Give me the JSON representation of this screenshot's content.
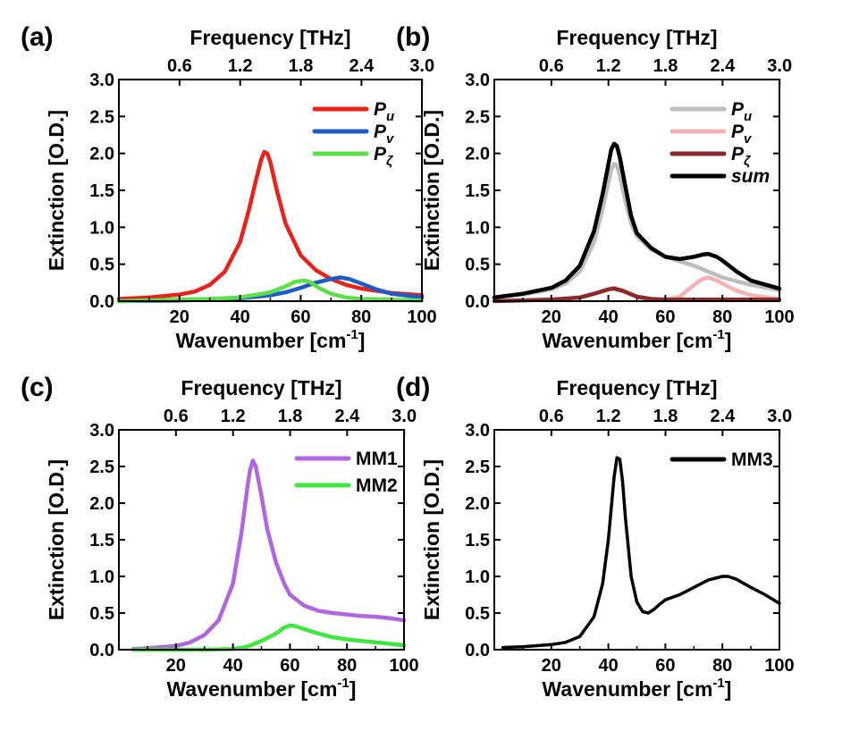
{
  "chart_data": [
    {
      "type": "line",
      "panel_label": "(a)",
      "xlabel": "Wavenumber [cm",
      "xlabel_sup": "-1",
      "xlabel_tail": "]",
      "ylabel": "Extinction [O.D.]",
      "top_axis_label": "Frequency [THz]",
      "xlim": [
        0,
        100
      ],
      "ylim": [
        0,
        3.0
      ],
      "x_ticks": [
        20,
        40,
        60,
        80,
        100
      ],
      "x_tick_labels": [
        "20",
        "40",
        "60",
        "80",
        "100"
      ],
      "y_ticks": [
        0,
        0.5,
        1,
        1.5,
        2,
        2.5,
        3
      ],
      "y_tick_labels": [
        "0.0",
        "0.5",
        "1.0",
        "1.5",
        "2.0",
        "2.5",
        "3.0"
      ],
      "top_ticks": [
        0.6,
        1.2,
        1.8,
        2.4,
        3.0
      ],
      "top_tick_labels": [
        "0.6",
        "1.2",
        "1.8",
        "2.4",
        "3.0"
      ],
      "legend_position": "top-right",
      "series": [
        {
          "name": "P",
          "sub": "u",
          "color": "#e8231c",
          "x": [
            0,
            10,
            20,
            25,
            30,
            35,
            40,
            43,
            45,
            47,
            48,
            49,
            50,
            52,
            55,
            60,
            65,
            70,
            75,
            80,
            90,
            100
          ],
          "y": [
            0.03,
            0.05,
            0.09,
            0.13,
            0.22,
            0.4,
            0.8,
            1.25,
            1.6,
            1.92,
            2.02,
            2.0,
            1.88,
            1.52,
            1.05,
            0.62,
            0.42,
            0.3,
            0.22,
            0.17,
            0.11,
            0.08
          ]
        },
        {
          "name": "P",
          "sub": "v",
          "color": "#1f5bc4",
          "x": [
            0,
            20,
            40,
            50,
            55,
            60,
            65,
            70,
            73,
            76,
            80,
            85,
            90,
            100
          ],
          "y": [
            0.0,
            0.01,
            0.04,
            0.08,
            0.12,
            0.18,
            0.25,
            0.3,
            0.32,
            0.3,
            0.24,
            0.16,
            0.1,
            0.05
          ]
        },
        {
          "name": "P",
          "sub": "ζ",
          "color": "#5ce048",
          "x": [
            0,
            20,
            30,
            40,
            50,
            55,
            58,
            61,
            63,
            66,
            70,
            75,
            80,
            90,
            100
          ],
          "y": [
            0.0,
            0.02,
            0.03,
            0.05,
            0.12,
            0.2,
            0.26,
            0.28,
            0.26,
            0.18,
            0.1,
            0.05,
            0.03,
            0.02,
            0.01
          ]
        }
      ]
    },
    {
      "type": "line",
      "panel_label": "(b)",
      "xlabel": "Wavenumber [cm",
      "xlabel_sup": "-1",
      "xlabel_tail": "]",
      "ylabel": "Extinction [O.D.]",
      "top_axis_label": "Frequency [THz]",
      "xlim": [
        0,
        100
      ],
      "ylim": [
        0,
        3.0
      ],
      "x_ticks": [
        20,
        40,
        60,
        80,
        100
      ],
      "x_tick_labels": [
        "20",
        "40",
        "60",
        "80",
        "100"
      ],
      "y_ticks": [
        0,
        0.5,
        1,
        1.5,
        2,
        2.5,
        3
      ],
      "y_tick_labels": [
        "0.0",
        "0.5",
        "1.0",
        "1.5",
        "2.0",
        "2.5",
        "3.0"
      ],
      "top_ticks": [
        0.6,
        1.2,
        1.8,
        2.4,
        3.0
      ],
      "top_tick_labels": [
        "0.6",
        "1.2",
        "1.8",
        "2.4",
        "3.0"
      ],
      "legend_position": "top-right",
      "series": [
        {
          "name": "P",
          "sub": "u",
          "color": "#bdbdbd",
          "x": [
            0,
            10,
            20,
            25,
            30,
            35,
            38,
            40,
            41,
            42,
            43,
            44,
            46,
            48,
            50,
            55,
            60,
            65,
            70,
            75,
            80,
            90,
            100
          ],
          "y": [
            0.05,
            0.09,
            0.16,
            0.24,
            0.4,
            0.8,
            1.25,
            1.6,
            1.78,
            1.86,
            1.84,
            1.7,
            1.35,
            1.05,
            0.88,
            0.7,
            0.6,
            0.54,
            0.48,
            0.4,
            0.32,
            0.22,
            0.15
          ]
        },
        {
          "name": "P",
          "sub": "v",
          "color": "#f4b3b3",
          "x": [
            0,
            20,
            30,
            35,
            40,
            42,
            45,
            50,
            55,
            60,
            65,
            70,
            73,
            75,
            78,
            80,
            85,
            90,
            100
          ],
          "y": [
            0.0,
            0.02,
            0.05,
            0.1,
            0.16,
            0.18,
            0.15,
            0.06,
            0.02,
            0.02,
            0.06,
            0.22,
            0.3,
            0.32,
            0.28,
            0.24,
            0.14,
            0.08,
            0.03
          ]
        },
        {
          "name": "P",
          "sub": "ζ",
          "color": "#8b2a2a",
          "x": [
            0,
            20,
            30,
            35,
            40,
            42,
            45,
            50,
            55,
            60,
            70,
            80,
            90,
            100
          ],
          "y": [
            0.0,
            0.02,
            0.05,
            0.1,
            0.16,
            0.17,
            0.14,
            0.06,
            0.03,
            0.02,
            0.02,
            0.02,
            0.02,
            0.02
          ]
        },
        {
          "name": "sum",
          "sub": "",
          "color": "#000000",
          "x": [
            0,
            10,
            20,
            25,
            30,
            35,
            38,
            40,
            41,
            42,
            43,
            44,
            46,
            48,
            50,
            55,
            60,
            65,
            70,
            73,
            75,
            78,
            80,
            85,
            90,
            100
          ],
          "y": [
            0.05,
            0.1,
            0.18,
            0.28,
            0.48,
            0.95,
            1.45,
            1.85,
            2.05,
            2.13,
            2.1,
            1.95,
            1.55,
            1.15,
            0.92,
            0.72,
            0.6,
            0.57,
            0.6,
            0.63,
            0.64,
            0.6,
            0.55,
            0.4,
            0.28,
            0.17
          ]
        }
      ]
    },
    {
      "type": "line",
      "panel_label": "(c)",
      "xlabel": "Wavenumber [cm",
      "xlabel_sup": "-1",
      "xlabel_tail": "]",
      "ylabel": "Extinction [O.D.]",
      "top_axis_label": "Frequency [THz]",
      "xlim": [
        0,
        100
      ],
      "ylim": [
        0,
        3.0
      ],
      "x_ticks": [
        20,
        40,
        60,
        80,
        100
      ],
      "x_tick_labels": [
        "20",
        "40",
        "60",
        "80",
        "100"
      ],
      "y_ticks": [
        0,
        0.5,
        1,
        1.5,
        2,
        2.5,
        3
      ],
      "y_tick_labels": [
        "0.0",
        "0.5",
        "1.0",
        "1.5",
        "2.0",
        "2.5",
        "3.0"
      ],
      "top_ticks": [
        0.6,
        1.2,
        1.8,
        2.4,
        3.0
      ],
      "top_tick_labels": [
        "0.6",
        "1.2",
        "1.8",
        "2.4",
        "3.0"
      ],
      "legend_position": "top-right",
      "series": [
        {
          "name": "MM1",
          "sub": "",
          "color": "#b066e0",
          "x": [
            5,
            10,
            20,
            25,
            30,
            35,
            40,
            43,
            45,
            46,
            47,
            48,
            50,
            52,
            55,
            58,
            60,
            65,
            70,
            75,
            80,
            85,
            90,
            95,
            100
          ],
          "y": [
            0.01,
            0.02,
            0.05,
            0.1,
            0.2,
            0.4,
            0.9,
            1.6,
            2.2,
            2.45,
            2.58,
            2.5,
            2.1,
            1.65,
            1.2,
            0.9,
            0.75,
            0.6,
            0.53,
            0.5,
            0.48,
            0.46,
            0.45,
            0.43,
            0.4
          ]
        },
        {
          "name": "MM2",
          "sub": "",
          "color": "#3ee83e",
          "x": [
            5,
            20,
            30,
            40,
            45,
            50,
            55,
            58,
            60,
            62,
            65,
            70,
            75,
            80,
            85,
            90,
            95,
            100
          ],
          "y": [
            0.0,
            0.0,
            0.0,
            0.01,
            0.04,
            0.12,
            0.22,
            0.3,
            0.33,
            0.32,
            0.28,
            0.22,
            0.17,
            0.14,
            0.12,
            0.1,
            0.08,
            0.06
          ]
        }
      ]
    },
    {
      "type": "line",
      "panel_label": "(d)",
      "xlabel": "Wavenumber [cm",
      "xlabel_sup": "-1",
      "xlabel_tail": "]",
      "ylabel": "Extinction [O.D.]",
      "top_axis_label": "Frequency [THz]",
      "xlim": [
        0,
        100
      ],
      "ylim": [
        0,
        3.0
      ],
      "x_ticks": [
        20,
        40,
        60,
        80,
        100
      ],
      "x_tick_labels": [
        "20",
        "40",
        "60",
        "80",
        "100"
      ],
      "y_ticks": [
        0,
        0.5,
        1,
        1.5,
        2,
        2.5,
        3
      ],
      "y_tick_labels": [
        "0.0",
        "0.5",
        "1.0",
        "1.5",
        "2.0",
        "2.5",
        "3.0"
      ],
      "top_ticks": [
        0.6,
        1.2,
        1.8,
        2.4,
        3.0
      ],
      "top_tick_labels": [
        "0.6",
        "1.2",
        "1.8",
        "2.4",
        "3.0"
      ],
      "legend_position": "top-right",
      "series": [
        {
          "name": "MM3",
          "sub": "",
          "color": "#000000",
          "x": [
            3,
            10,
            20,
            25,
            30,
            35,
            38,
            40,
            42,
            43,
            44,
            45,
            46,
            48,
            50,
            52,
            54,
            56,
            58,
            60,
            65,
            70,
            75,
            80,
            82,
            85,
            90,
            95,
            100
          ],
          "y": [
            0.03,
            0.04,
            0.07,
            0.1,
            0.18,
            0.45,
            0.9,
            1.5,
            2.35,
            2.62,
            2.6,
            2.3,
            1.8,
            1.0,
            0.65,
            0.52,
            0.5,
            0.55,
            0.62,
            0.68,
            0.75,
            0.85,
            0.95,
            1.0,
            1.0,
            0.96,
            0.85,
            0.75,
            0.63
          ]
        }
      ]
    }
  ]
}
